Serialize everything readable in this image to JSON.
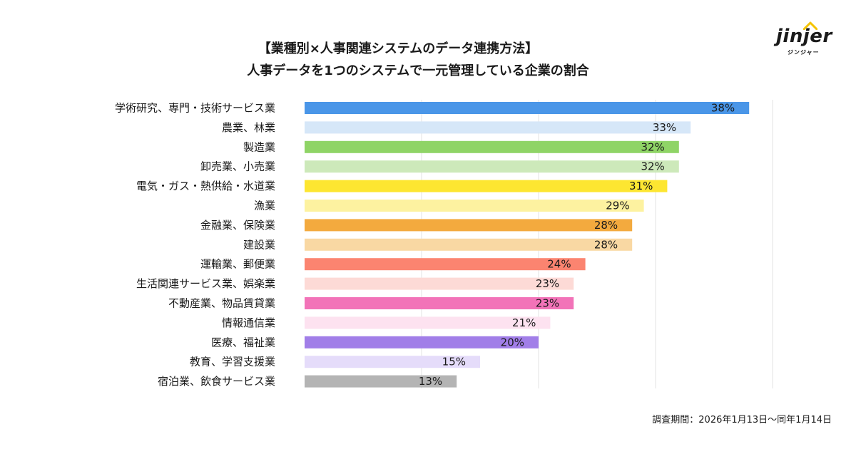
{
  "titles": {
    "line1": "【業種別×人事関連システムのデータ連携方法】",
    "line2": "人事データを1つのシステムで一元管理している企業の割合"
  },
  "logo": {
    "main": "jinjer",
    "sub": "ジンジャー"
  },
  "footer": {
    "period": "調査期間：2026年1月13日〜同年1月14日"
  },
  "chart_data": {
    "type": "bar",
    "orientation": "horizontal",
    "title": "人事データを1つのシステムで一元管理している企業の割合",
    "categories": [
      "学術研究、専門・技術サービス業",
      "農業、林業",
      "製造業",
      "卸売業、小売業",
      "電気・ガス・熱供給・水道業",
      "漁業",
      "金融業、保険業",
      "建設業",
      "運輸業、郵便業",
      "生活関連サービス業、娯楽業",
      "不動産業、物品賃貸業",
      "情報通信業",
      "医療、福祉業",
      "教育、学習支援業",
      "宿泊業、飲食サービス業"
    ],
    "values": [
      38,
      33,
      32,
      32,
      31,
      29,
      28,
      28,
      24,
      23,
      23,
      21,
      20,
      15,
      13
    ],
    "value_labels": [
      "38%",
      "33%",
      "32%",
      "32%",
      "31%",
      "29%",
      "28%",
      "28%",
      "24%",
      "23%",
      "23%",
      "21%",
      "20%",
      "15%",
      "13%"
    ],
    "colors": [
      "#4a96e8",
      "#d6e7f8",
      "#8fd466",
      "#cde9ba",
      "#fde631",
      "#fdf2a0",
      "#f3aa3e",
      "#f9d8a3",
      "#fb8470",
      "#fddad6",
      "#f273b8",
      "#fde2f0",
      "#a17ee8",
      "#e5dcfa",
      "#b4b4b4"
    ],
    "xlim": [
      0,
      40
    ],
    "grid": true,
    "legend": "none"
  }
}
